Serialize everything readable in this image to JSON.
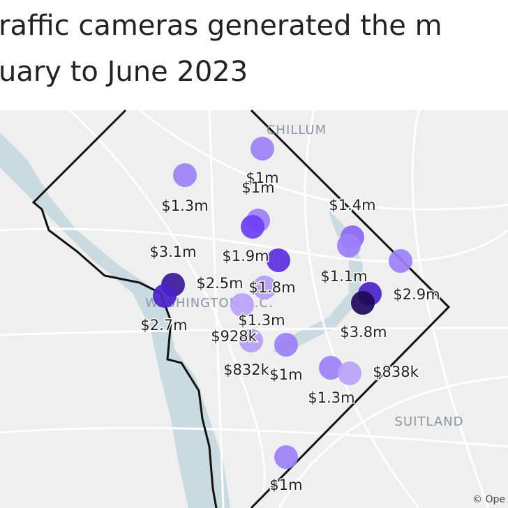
{
  "title_lines": [
    "raffic cameras generated the m",
    "uary to June 2023"
  ],
  "places": [
    "CHILLUM",
    "WASHINGTON D.C.",
    "SUITLAND"
  ],
  "attribution": "© Ope",
  "markers": [
    {
      "color": "#9b80f7"
    },
    {
      "color": "#9b80f7"
    },
    {
      "color": "#9b80f7"
    },
    {
      "color": "#6b3ff2"
    },
    {
      "color": "#8a66f5"
    },
    {
      "color": "#9b80f7"
    },
    {
      "color": "#9b80f7"
    },
    {
      "color": "#5a2fe0"
    },
    {
      "color": "#3a1a9c"
    },
    {
      "color": "#4a22c8"
    },
    {
      "color": "#b39cf7"
    },
    {
      "color": "#b8a3f8"
    },
    {
      "color": "#4a22c8"
    },
    {
      "color": "#1e0a5a"
    },
    {
      "color": "#b39cf7"
    },
    {
      "color": "#9b80f7"
    },
    {
      "color": "#9b80f7"
    },
    {
      "color": "#b8a3f8"
    },
    {
      "color": "#9b80f7"
    }
  ],
  "labels": [
    "$1m",
    "$1m",
    "$1.3m",
    "$1.4m",
    "$3.1m",
    "$1.9m",
    "$1.1m",
    "$2.5m",
    "$1.8m",
    "$2.9m",
    "$2.7m",
    "$1.3m",
    "$3.8m",
    "$928k",
    "$832k",
    "$1m",
    "$838k",
    "$1.3m",
    "$1m"
  ]
}
